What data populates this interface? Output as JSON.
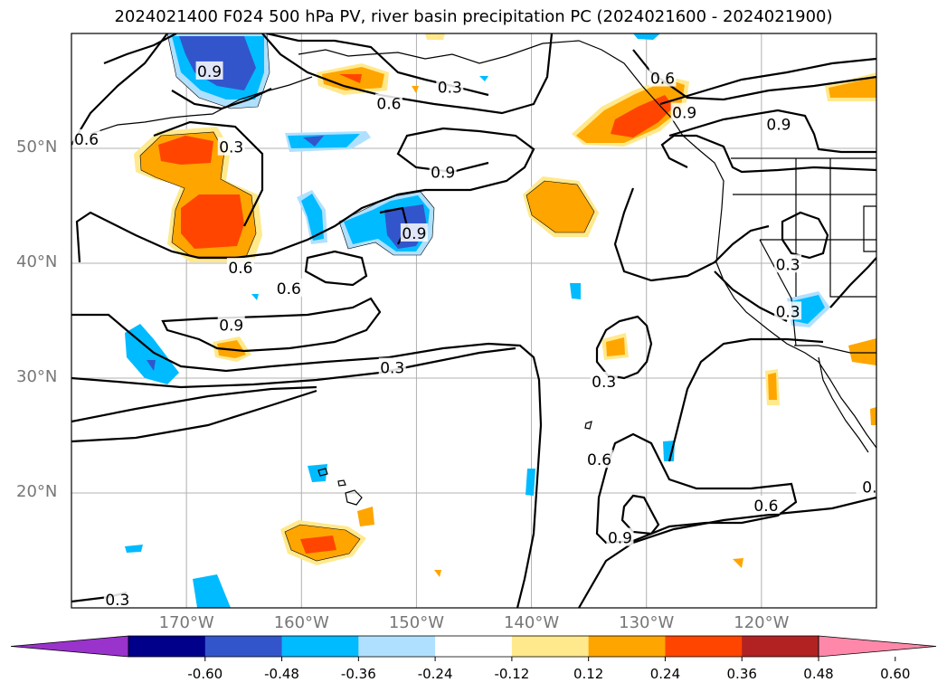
{
  "title": "2024021400 F024 500 hPa PV, river basin precipitation PC (2024021600 - 2024021900)",
  "map": {
    "lon_range": [
      -180,
      -110
    ],
    "lat_range": [
      10,
      60
    ],
    "lat_ticks": [
      {
        "value": 50,
        "label": "50°N"
      },
      {
        "value": 40,
        "label": "40°N"
      },
      {
        "value": 30,
        "label": "30°N"
      },
      {
        "value": 20,
        "label": "20°N"
      }
    ],
    "lon_ticks": [
      {
        "value": -170,
        "label": "170°W"
      },
      {
        "value": -160,
        "label": "160°W"
      },
      {
        "value": -150,
        "label": "150°W"
      },
      {
        "value": -140,
        "label": "140°W"
      },
      {
        "value": -130,
        "label": "130°W"
      },
      {
        "value": -120,
        "label": "120°W"
      }
    ],
    "contour_labels": [
      {
        "text": "0.9",
        "lon": -168,
        "lat": 56.7
      },
      {
        "text": "0.3",
        "lon": -147.1,
        "lat": 55.3
      },
      {
        "text": "0.6",
        "lon": -152.4,
        "lat": 53.9
      },
      {
        "text": "0.6",
        "lon": -178.7,
        "lat": 50.8
      },
      {
        "text": "0.3",
        "lon": -166.1,
        "lat": 50.1
      },
      {
        "text": "0.9",
        "lon": -147.7,
        "lat": 47.9
      },
      {
        "text": "0.9",
        "lon": -150.2,
        "lat": 42.6
      },
      {
        "text": "0.6",
        "lon": -165.3,
        "lat": 39.6
      },
      {
        "text": "0.6",
        "lon": -161.1,
        "lat": 37.8
      },
      {
        "text": "0.9",
        "lon": -166.1,
        "lat": 34.6
      },
      {
        "text": "0.3",
        "lon": -152.1,
        "lat": 30.9
      },
      {
        "text": "0.3",
        "lon": -133.7,
        "lat": 29.7
      },
      {
        "text": "0.6",
        "lon": -128.6,
        "lat": 56.1
      },
      {
        "text": "0.9",
        "lon": -126.7,
        "lat": 53.1
      },
      {
        "text": "0.9",
        "lon": -118.5,
        "lat": 52.1
      },
      {
        "text": "0.3",
        "lon": -117.7,
        "lat": 39.9
      },
      {
        "text": "0.3",
        "lon": -117.7,
        "lat": 35.8
      },
      {
        "text": "0.6",
        "lon": -134.1,
        "lat": 22.9
      },
      {
        "text": "0.9",
        "lon": -132.3,
        "lat": 16.1
      },
      {
        "text": "0.6",
        "lon": -119.6,
        "lat": 18.9
      },
      {
        "text": "0.",
        "lon": -110.6,
        "lat": 20.5
      },
      {
        "text": "0.3",
        "lon": -176,
        "lat": 10.7
      }
    ]
  },
  "colorbar": {
    "levels": [
      "-0.60",
      "-0.48",
      "-0.36",
      "-0.24",
      "-0.12",
      "0.12",
      "0.24",
      "0.36",
      "0.48",
      "0.60"
    ],
    "colors": [
      "#9933cc",
      "#00008b",
      "#3355cc",
      "#00bbff",
      "#b0e0ff",
      "#ffffff",
      "#ffe98c",
      "#ffa500",
      "#ff4500",
      "#b22222",
      "#ff88aa"
    ]
  }
}
